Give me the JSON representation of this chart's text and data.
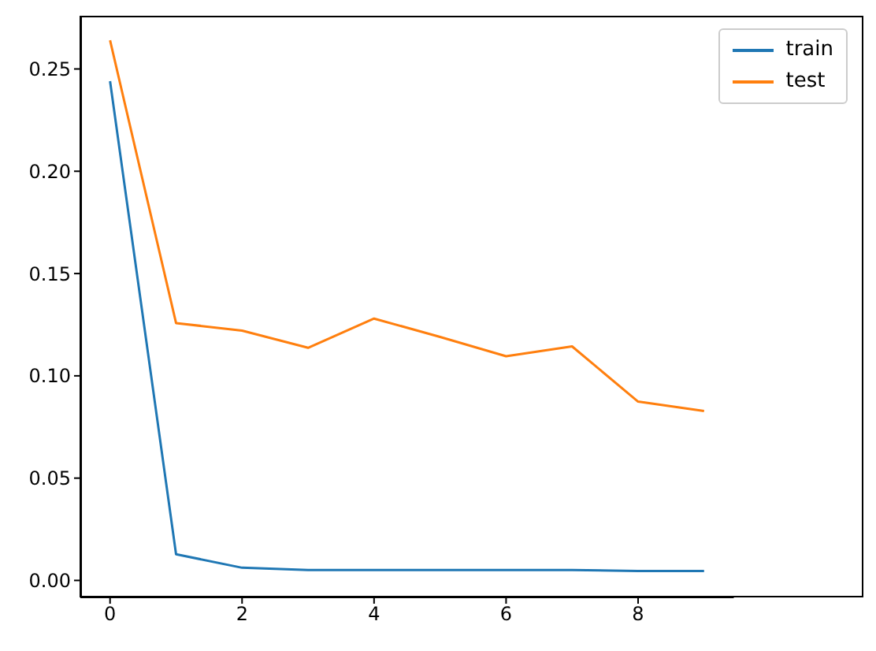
{
  "chart_data": {
    "type": "line",
    "x": [
      0,
      1,
      2,
      3,
      4,
      5,
      6,
      7,
      8,
      9
    ],
    "series": [
      {
        "name": "train",
        "color": "#1f77b4",
        "values": [
          0.244,
          0.0128,
          0.0062,
          0.0051,
          0.0051,
          0.0051,
          0.0051,
          0.0051,
          0.0046,
          0.0046
        ]
      },
      {
        "name": "test",
        "color": "#ff7f0e",
        "values": [
          0.264,
          0.1258,
          0.1221,
          0.1137,
          0.128,
          0.119,
          0.1096,
          0.1144,
          0.0874,
          0.0828
        ]
      }
    ],
    "xlim": [
      -0.45,
      9.45
    ],
    "xticks": [
      0,
      2,
      4,
      6,
      8
    ],
    "ylim": [
      -0.0083,
      0.276
    ],
    "yticks": [
      {
        "value": 0,
        "label": "0.00"
      },
      0.05,
      {
        "value": 0.1,
        "label": "0.10"
      },
      0.15,
      {
        "value": 0.2,
        "label": "0.20"
      },
      0.25
    ],
    "grid": false,
    "legend": "top right",
    "marker": "none",
    "line_style": "solid"
  }
}
